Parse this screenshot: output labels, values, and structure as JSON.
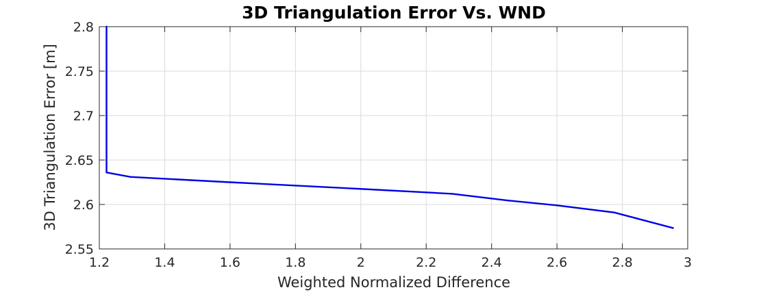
{
  "chart_data": {
    "type": "line",
    "title": "3D Triangulation Error Vs. WND",
    "xlabel": "Weighted Normalized Difference",
    "ylabel": "3D Triangulation Error [m]",
    "xlim": [
      1.2,
      3
    ],
    "ylim": [
      2.55,
      2.8
    ],
    "xticks": [
      1.2,
      1.4,
      1.6,
      1.8,
      2,
      2.2,
      2.4,
      2.6,
      2.8,
      3
    ],
    "xtick_labels": [
      "1.2",
      "1.4",
      "1.6",
      "1.8",
      "2",
      "2.2",
      "2.4",
      "2.6",
      "2.8",
      "3"
    ],
    "yticks": [
      2.55,
      2.6,
      2.65,
      2.7,
      2.75,
      2.8
    ],
    "ytick_labels": [
      "2.55",
      "2.6",
      "2.65",
      "2.7",
      "2.75",
      "2.8"
    ],
    "grid": true,
    "series": [
      {
        "color": "#0000e6",
        "x": [
          1.222,
          1.222,
          1.222,
          1.295,
          1.6,
          2.0,
          2.28,
          2.45,
          2.6,
          2.775,
          2.955
        ],
        "y": [
          2.8,
          2.7,
          2.636,
          2.631,
          2.625,
          2.6175,
          2.612,
          2.6045,
          2.599,
          2.591,
          2.5735
        ]
      }
    ]
  }
}
